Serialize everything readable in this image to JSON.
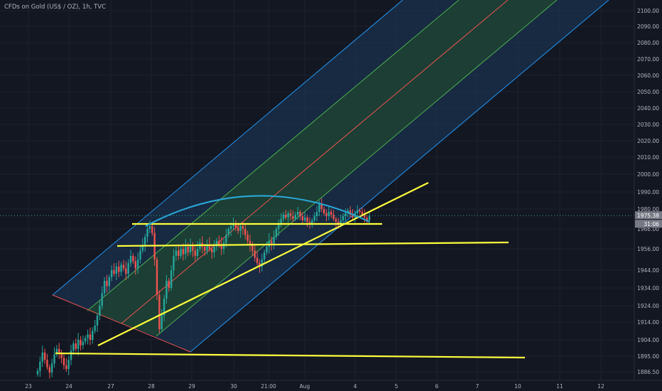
{
  "header": {
    "title": "CFDs on Gold (US$ / OZ), 1h, TVC"
  },
  "colors": {
    "background": "#131722",
    "up": "#26a69a",
    "down": "#ef5350",
    "yellow_lines": "#ffff3b",
    "arc": "#2aa8d8",
    "channel_outer_fill": "#1b3a5c",
    "channel_inner_fill": "#1f4d2c",
    "channel_line_blue": "#2196f3",
    "channel_line_green": "#4caf50",
    "channel_median": "#ef5350",
    "price_tag_bg": "#787b86",
    "grid": "#1e222d"
  },
  "chart_data": {
    "type": "candlestick",
    "x_ticks": [
      "23",
      "24",
      "27",
      "28",
      "29",
      "30",
      "21:00",
      "Aug",
      "4",
      "5",
      "6",
      "7",
      "10",
      "11",
      "12"
    ],
    "y_ticks": [
      2100.0,
      2090.0,
      2080.0,
      2070.0,
      2060.0,
      2050.0,
      2040.0,
      2030.0,
      2020.0,
      2010.0,
      2000.0,
      1990.0,
      1980.0,
      1966.0,
      1956.0,
      1944.0,
      1934.0,
      1924.0,
      1914.0,
      1904.0,
      1895.0,
      1886.5
    ],
    "y_tick_labels": [
      "2100.00",
      "2090.00",
      "2080.00",
      "2070.00",
      "2060.00",
      "2050.00",
      "2040.00",
      "2030.00",
      "2020.00",
      "2010.00",
      "2000.00",
      "1990.00",
      "1980.00",
      "1966.00",
      "1956.00",
      "1944.00",
      "1934.00",
      "1924.00",
      "1914.00",
      "1904.00",
      "1895.00",
      "1886.50"
    ],
    "ylim": [
      1882,
      2106
    ],
    "last_price": "1975.38",
    "countdown": "31:06",
    "closes": [
      1887,
      1892,
      1897,
      1893,
      1889,
      1886,
      1891,
      1896,
      1899,
      1897,
      1894,
      1890,
      1888,
      1893,
      1898,
      1902,
      1899,
      1904,
      1901,
      1903,
      1905,
      1907,
      1904,
      1909,
      1912,
      1918,
      1924,
      1931,
      1938,
      1935,
      1940,
      1944,
      1942,
      1946,
      1943,
      1947,
      1945,
      1942,
      1948,
      1952,
      1949,
      1945,
      1950,
      1955,
      1958,
      1962,
      1966,
      1968,
      1964,
      1950,
      1930,
      1910,
      1918,
      1928,
      1938,
      1934,
      1944,
      1952,
      1955,
      1952,
      1956,
      1953,
      1957,
      1954,
      1958,
      1955,
      1952,
      1956,
      1959,
      1957,
      1955,
      1958,
      1956,
      1954,
      1957,
      1960,
      1958,
      1956,
      1959,
      1963,
      1966,
      1968,
      1970,
      1967,
      1965,
      1968,
      1966,
      1963,
      1960,
      1958,
      1955,
      1951,
      1948,
      1946,
      1950,
      1954,
      1957,
      1960,
      1958,
      1962,
      1966,
      1970,
      1973,
      1976,
      1974,
      1977,
      1975,
      1973,
      1976,
      1978,
      1975,
      1972,
      1974,
      1971,
      1969,
      1972,
      1975,
      1978,
      1983,
      1980,
      1977,
      1975,
      1978,
      1976,
      1973,
      1971,
      1969,
      1972,
      1975,
      1977,
      1979,
      1976,
      1974,
      1977,
      1979,
      1978,
      1976,
      1974,
      1972,
      1975.38
    ]
  }
}
